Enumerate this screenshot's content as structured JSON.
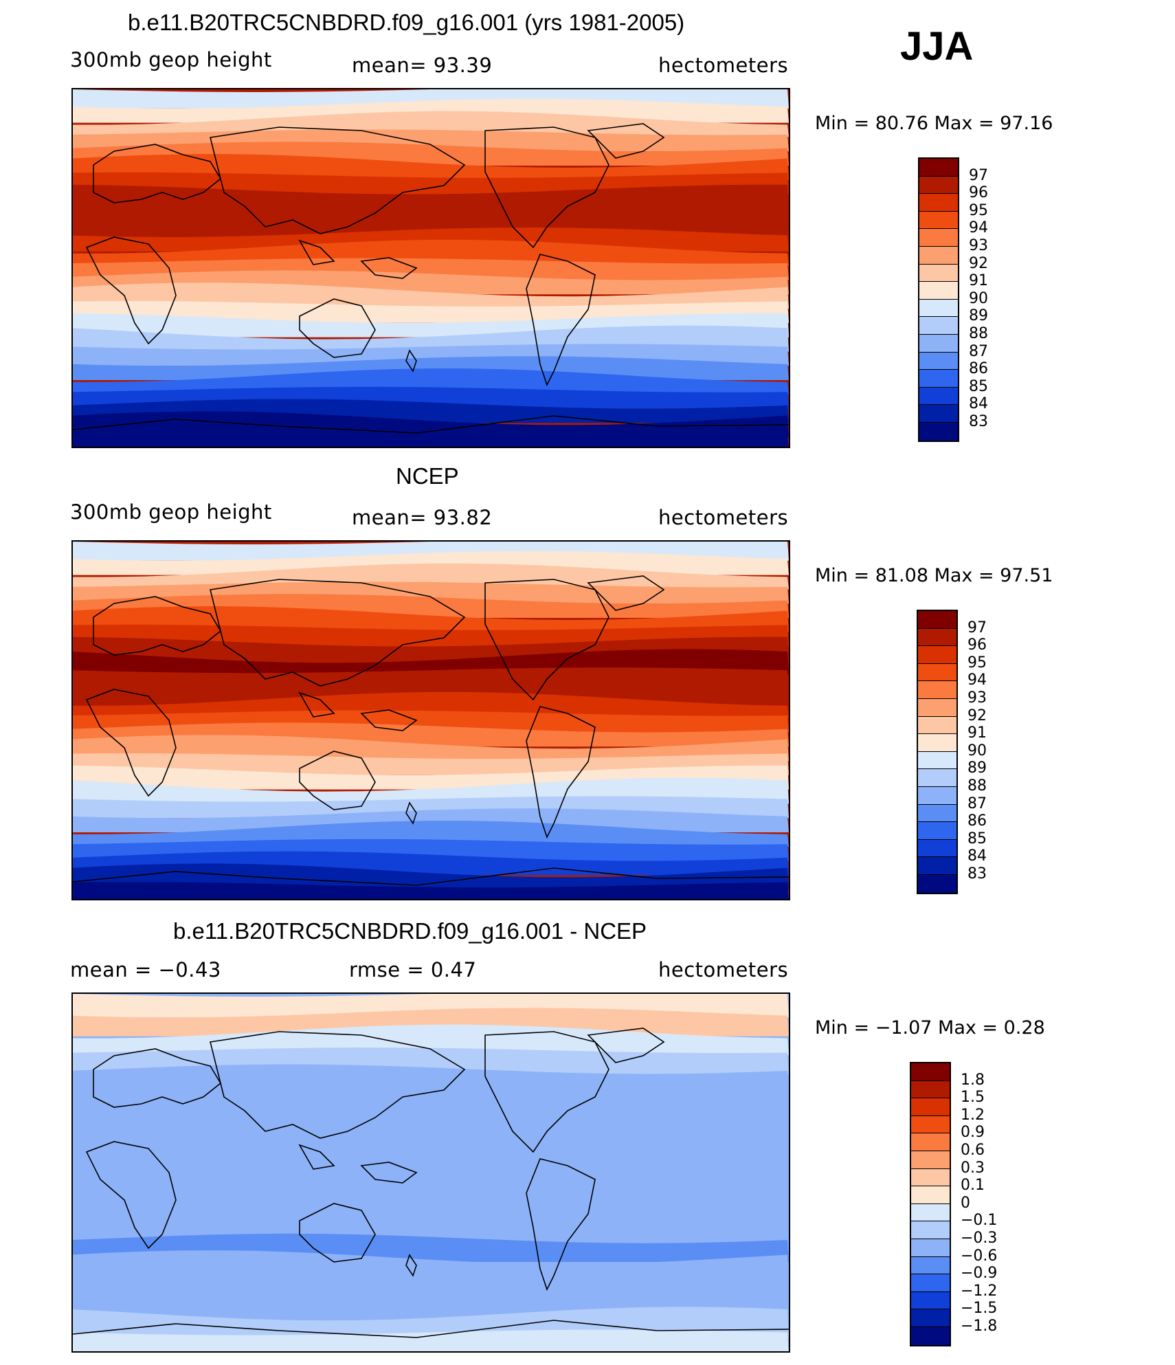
{
  "season_label": "JJA",
  "panels": [
    {
      "title": "b.e11.B20TRC5CNBDRD.f09_g16.001 (yrs 1981-2005)",
      "left_label": "300mb  geop  height",
      "center_label": "mean=   93.39",
      "right_label": "hectometers",
      "minmax": "Min  =    80.76  Max  =    97.16",
      "colorbar_labels": [
        "97",
        "96",
        "95",
        "94",
        "93",
        "92",
        "91",
        "90",
        "89",
        "88",
        "87",
        "86",
        "85",
        "84",
        "83"
      ],
      "colorbar_colors": [
        "#800000",
        "#b01a00",
        "#d93200",
        "#f04e10",
        "#fa7a40",
        "#fda070",
        "#fdc7a5",
        "#fde6d2",
        "#d7e8fb",
        "#b2cdfa",
        "#8db2f8",
        "#5b8ef5",
        "#2e66f0",
        "#1040d8",
        "#0020a8",
        "#000a80"
      ],
      "band_colors": [
        "#d7e8fb",
        "#fde6d2",
        "#fdc7a5",
        "#fda070",
        "#fa7a40",
        "#f04e10",
        "#d93200",
        "#b01a00",
        "#b01a00",
        "#b01a00",
        "#d93200",
        "#f04e10",
        "#fa7a40",
        "#fda070",
        "#fdc7a5",
        "#fde6d2",
        "#d7e8fb",
        "#b2cdfa",
        "#8db2f8",
        "#5b8ef5",
        "#2e66f0",
        "#1040d8",
        "#0020a8",
        "#000a80",
        "#000a80"
      ],
      "map_background": "#b01a00"
    },
    {
      "title": "NCEP",
      "left_label": "300mb  geop  height",
      "center_label": "mean=   93.82",
      "right_label": "hectometers",
      "minmax": "Min  =    81.08  Max  =    97.51",
      "colorbar_labels": [
        "97",
        "96",
        "95",
        "94",
        "93",
        "92",
        "91",
        "90",
        "89",
        "88",
        "87",
        "86",
        "85",
        "84",
        "83"
      ],
      "colorbar_colors": [
        "#800000",
        "#b01a00",
        "#d93200",
        "#f04e10",
        "#fa7a40",
        "#fda070",
        "#fdc7a5",
        "#fde6d2",
        "#d7e8fb",
        "#b2cdfa",
        "#8db2f8",
        "#5b8ef5",
        "#2e66f0",
        "#1040d8",
        "#0020a8",
        "#000a80"
      ],
      "band_colors": [
        "#d7e8fb",
        "#fde6d2",
        "#fdc7a5",
        "#fda070",
        "#fa7a40",
        "#f04e10",
        "#d93200",
        "#b01a00",
        "#800000",
        "#b01a00",
        "#b01a00",
        "#d93200",
        "#f04e10",
        "#fa7a40",
        "#fda070",
        "#fdc7a5",
        "#fde6d2",
        "#d7e8fb",
        "#b2cdfa",
        "#8db2f8",
        "#5b8ef5",
        "#2e66f0",
        "#1040d8",
        "#0020a8",
        "#000a80"
      ],
      "map_background": "#b01a00"
    },
    {
      "title": "b.e11.B20TRC5CNBDRD.f09_g16.001 - NCEP",
      "left_label": "mean  =    −0.43",
      "center_label": "rmse  =     0.47",
      "right_label": "hectometers",
      "minmax": "Min  =   −1.07  Max  =     0.28",
      "colorbar_labels": [
        "1.8",
        "1.5",
        "1.2",
        "0.9",
        "0.6",
        "0.3",
        "0.1",
        "0",
        "−0.1",
        "−0.3",
        "−0.6",
        "−0.9",
        "−1.2",
        "−1.5",
        "−1.8"
      ],
      "colorbar_colors": [
        "#800000",
        "#b01a00",
        "#d93200",
        "#f04e10",
        "#fa7a40",
        "#fda070",
        "#fdc7a5",
        "#fde6d2",
        "#d7e8fb",
        "#b2cdfa",
        "#8db2f8",
        "#5b8ef5",
        "#2e66f0",
        "#1040d8",
        "#0020a8",
        "#000a80"
      ],
      "band_colors": [
        "#fde6d2",
        "#fdc7a5",
        "#d7e8fb",
        "#b2cdfa",
        "#8db2f8",
        "#8db2f8",
        "#8db2f8",
        "#8db2f8",
        "#8db2f8",
        "#8db2f8",
        "#8db2f8",
        "#8db2f8",
        "#8db2f8",
        "#5b8ef5",
        "#8db2f8",
        "#8db2f8",
        "#8db2f8",
        "#b2cdfa",
        "#d7e8fb"
      ],
      "map_background": "#8db2f8"
    }
  ]
}
